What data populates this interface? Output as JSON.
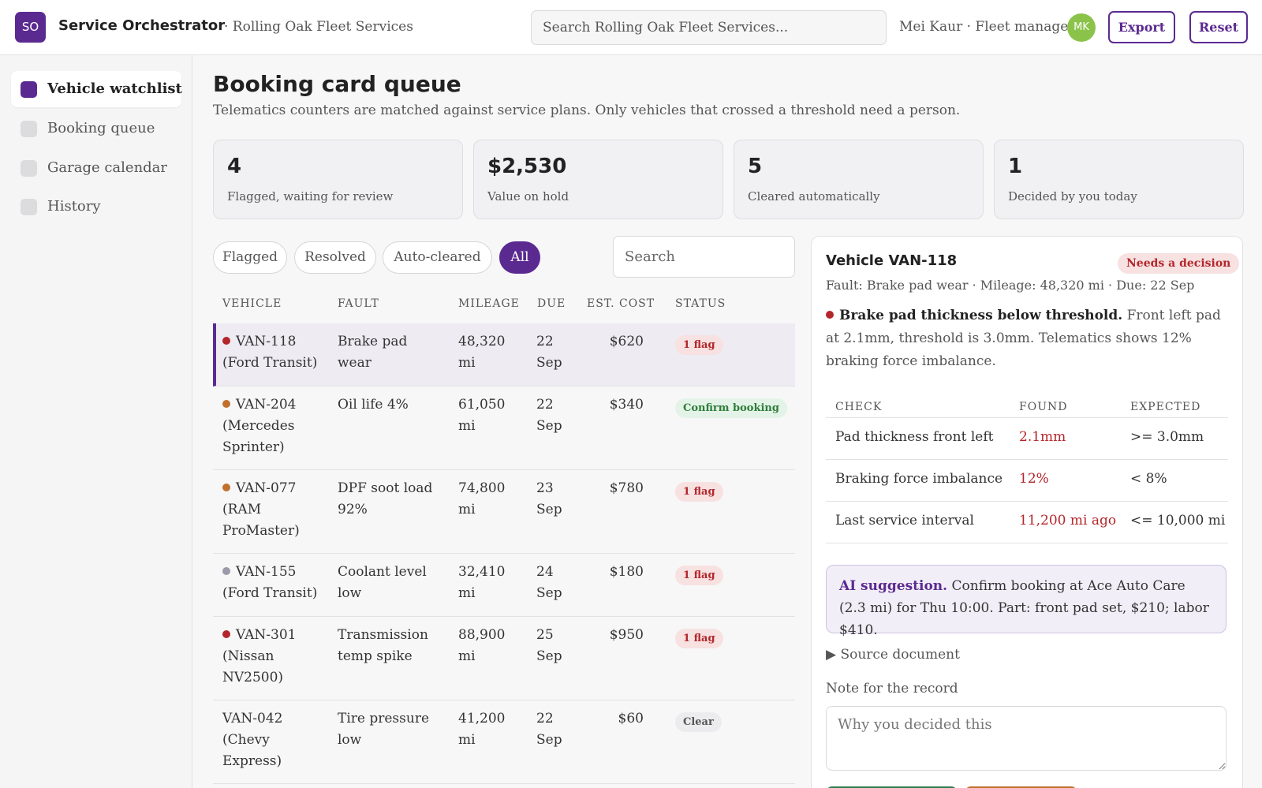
{
  "header": {
    "logo": "SO",
    "app_title": "Service Orchestrator",
    "org": "· Rolling Oak Fleet Services",
    "search_placeholder": "Search Rolling Oak Fleet Services...",
    "user": "Mei Kaur · Fleet manager",
    "avatar": "MK",
    "export_label": "Export",
    "reset_label": "Reset"
  },
  "sidebar": {
    "items": [
      {
        "label": "Vehicle watchlist",
        "active": true
      },
      {
        "label": "Booking queue",
        "active": false
      },
      {
        "label": "Garage calendar",
        "active": false
      },
      {
        "label": "History",
        "active": false
      }
    ]
  },
  "main": {
    "title": "Booking card queue",
    "subtitle": "Telematics counters are matched against service plans. Only vehicles that crossed a threshold need a person."
  },
  "stats": [
    {
      "value": "4",
      "label": "Flagged, waiting for review"
    },
    {
      "value": "$2,530",
      "label": "Value on hold"
    },
    {
      "value": "5",
      "label": "Cleared automatically"
    },
    {
      "value": "1",
      "label": "Decided by you today"
    }
  ],
  "filters": {
    "pills": [
      "Flagged",
      "Resolved",
      "Auto-cleared",
      "All"
    ],
    "active": "All",
    "search_placeholder": "Search"
  },
  "table": {
    "columns": [
      "VEHICLE",
      "FAULT",
      "MILEAGE",
      "DUE",
      "EST. COST",
      "STATUS"
    ],
    "rows": [
      {
        "vehicle_id": "VAN-118",
        "vehicle_model": "(Ford Transit)",
        "dot": "#b3262b",
        "fault": "Brake pad wear",
        "mileage": "48,320 mi",
        "due": "22 Sep",
        "cost": "$620",
        "status": "1 flag",
        "status_kind": "flag",
        "selected": true
      },
      {
        "vehicle_id": "VAN-204",
        "vehicle_model": "(Mercedes Sprinter)",
        "dot": "#c0702c",
        "fault": "Oil life 4%",
        "mileage": "61,050 mi",
        "due": "22 Sep",
        "cost": "$340",
        "status": "Confirm booking",
        "status_kind": "confirm",
        "selected": false
      },
      {
        "vehicle_id": "VAN-077",
        "vehicle_model": "(RAM ProMaster)",
        "dot": "#c0702c",
        "fault": "DPF soot load 92%",
        "mileage": "74,800 mi",
        "due": "23 Sep",
        "cost": "$780",
        "status": "1 flag",
        "status_kind": "flag",
        "selected": false
      },
      {
        "vehicle_id": "VAN-155",
        "vehicle_model": "(Ford Transit)",
        "dot": "#9a9aa8",
        "fault": "Coolant level low",
        "mileage": "32,410 mi",
        "due": "24 Sep",
        "cost": "$180",
        "status": "1 flag",
        "status_kind": "flag",
        "selected": false
      },
      {
        "vehicle_id": "VAN-301",
        "vehicle_model": "(Nissan NV2500)",
        "dot": "#b3262b",
        "fault": "Transmission temp spike",
        "mileage": "88,900 mi",
        "due": "25 Sep",
        "cost": "$950",
        "status": "1 flag",
        "status_kind": "flag",
        "selected": false
      },
      {
        "vehicle_id": "VAN-042",
        "vehicle_model": "(Chevy Express)",
        "dot": "",
        "fault": "Tire pressure low",
        "mileage": "41,200 mi",
        "due": "22 Sep",
        "cost": "$60",
        "status": "Clear",
        "status_kind": "clear",
        "selected": false
      }
    ]
  },
  "detail": {
    "title": "Vehicle VAN-118",
    "badge": "Needs a decision",
    "meta": "Fault: Brake pad wear · Mileage: 48,320 mi · Due: 22 Sep",
    "finding_bold": "Brake pad thickness below threshold.",
    "finding_text": "Front left pad at 2.1mm, threshold is 3.0mm. Telematics shows 12% braking force imbalance.",
    "check_columns": [
      "CHECK",
      "FOUND",
      "EXPECTED"
    ],
    "checks": [
      {
        "check": "Pad thickness front left",
        "found": "2.1mm",
        "expected": ">= 3.0mm"
      },
      {
        "check": "Braking force imbalance",
        "found": "12%",
        "expected": "< 8%"
      },
      {
        "check": "Last service interval",
        "found": "11,200 mi ago",
        "expected": "<= 10,000 mi"
      }
    ],
    "ai_label": "AI suggestion.",
    "ai_text": "Confirm booking at Ace Auto Care (2.3 mi) for Thu 10:00. Part: front pad set, $210; labor $410.",
    "source_label": "▶ Source document",
    "note_label": "Note for the record",
    "note_placeholder": "Why you decided this"
  },
  "colors": {
    "accent": "#5b2a91",
    "danger": "#b3262b",
    "success": "#2e7d3a",
    "warning": "#c0702c"
  }
}
